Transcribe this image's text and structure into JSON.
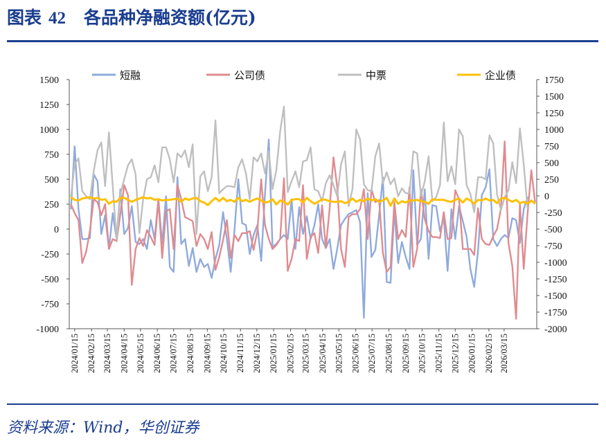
{
  "header": {
    "title_prefix": "图表",
    "title_number": "42",
    "title_text": "各品种净融资额(亿元)"
  },
  "footer": {
    "source": "资料来源：Wind，华创证券"
  },
  "chart_data": {
    "type": "line",
    "title": "各品种净融资额(亿元)",
    "xlabel": "",
    "ylabel": "",
    "ylim_left": [
      -1000,
      1500
    ],
    "ylim_right": [
      -2000,
      1750
    ],
    "yticks_left": [
      "1500",
      "1250",
      "1000",
      "750",
      "500",
      "250",
      "0",
      "-250",
      "-500",
      "-750",
      "-1000"
    ],
    "yticks_right": [
      "1750",
      "1500",
      "1250",
      "1000",
      "750",
      "500",
      "250",
      "0",
      "-250",
      "-500",
      "-750",
      "-1000",
      "-1250",
      "-1500",
      "-1750",
      "-2000"
    ],
    "x_tick_labels": [
      "2024/01/15",
      "2024/02/15",
      "2024/03/15",
      "2024/04/15",
      "2024/05/15",
      "2024/06/15",
      "2024/07/15",
      "2024/08/15",
      "2024/09/15",
      "2024/10/15",
      "2024/11/15",
      "2024/12/15",
      "2025/01/15",
      "2025/02/15",
      "2025/03/15",
      "2025/04/15",
      "2025/05/15",
      "2025/06/15",
      "2025/07/15",
      "2025/08/15",
      "2025/09/15",
      "2025/10/15",
      "2025/11/15",
      "2025/12/15",
      "2026/01/15",
      "2026/02/15",
      "2026/03/15"
    ],
    "x_start": "2024/01/08",
    "x_step_days": 7,
    "grid": false,
    "legend_position": "top",
    "series": [
      {
        "name": "短融",
        "axis": "left",
        "color": "#8faadc",
        "values": [
          200,
          830,
          200,
          -100,
          -100,
          -90,
          550,
          480,
          -50,
          140,
          -200,
          160,
          -100,
          400,
          -50,
          10,
          230,
          -130,
          -150,
          -100,
          -200,
          90,
          -100,
          300,
          -150,
          330,
          -380,
          -430,
          520,
          -150,
          -100,
          -370,
          -190,
          -430,
          -300,
          -380,
          -350,
          -490,
          -300,
          -160,
          170,
          -100,
          -430,
          -10,
          500,
          60,
          40,
          -250,
          -60,
          40,
          -320,
          350,
          900,
          -180,
          -150,
          -100,
          -60,
          -100,
          300,
          -200,
          220,
          -50,
          130,
          -100,
          40,
          250,
          -100,
          -190,
          -100,
          -400,
          -200,
          40,
          100,
          150,
          170,
          190,
          70,
          -890,
          360,
          -280,
          -210,
          140,
          520,
          -530,
          -540,
          190,
          -340,
          -130,
          -280,
          -400,
          590,
          -160,
          -100,
          400,
          -300,
          240,
          230,
          -20,
          110,
          -420,
          200,
          -100,
          230,
          80,
          -80,
          -400,
          -580,
          -220,
          340,
          420,
          600,
          -100,
          -170,
          -100,
          -60,
          -90,
          110,
          90,
          -140,
          200,
          320
        ]
      },
      {
        "name": "公司债",
        "axis": "left",
        "color": "#e08b8f",
        "values": [
          250,
          160,
          90,
          -340,
          -230,
          -20,
          300,
          270,
          140,
          250,
          -200,
          -100,
          -120,
          150,
          440,
          340,
          -560,
          -200,
          -90,
          -170,
          -10,
          -80,
          -160,
          290,
          -290,
          180,
          200,
          -200,
          440,
          300,
          120,
          100,
          80,
          -170,
          -50,
          -100,
          -200,
          -30,
          -410,
          -280,
          -110,
          90,
          -290,
          -60,
          -120,
          -40,
          -40,
          -20,
          -210,
          -20,
          500,
          40,
          -100,
          -200,
          -160,
          -100,
          510,
          -420,
          -300,
          -100,
          -120,
          440,
          -300,
          -80,
          -40,
          -240,
          240,
          -190,
          210,
          720,
          420,
          -200,
          -380,
          120,
          150,
          150,
          200,
          400,
          -100,
          400,
          270,
          290,
          -240,
          -430,
          -380,
          270,
          -100,
          -10,
          -80,
          420,
          -380,
          -200,
          400,
          100,
          -20,
          -80,
          -80,
          -90,
          170,
          -100,
          -90,
          390,
          300,
          -200,
          -200,
          -200,
          -260,
          210,
          -100,
          -150,
          -160,
          -70,
          0,
          200,
          880,
          -140,
          -370,
          -900,
          250,
          -400,
          150,
          590,
          270
        ]
      },
      {
        "name": "中票",
        "axis": "left",
        "color": "#bfbfbf",
        "values": [
          320,
          650,
          710,
          380,
          330,
          300,
          580,
          790,
          870,
          430,
          970,
          430,
          -100,
          350,
          500,
          640,
          700,
          550,
          -40,
          300,
          500,
          520,
          640,
          470,
          820,
          820,
          700,
          470,
          760,
          720,
          790,
          620,
          850,
          -50,
          530,
          580,
          380,
          520,
          1090,
          360,
          400,
          430,
          430,
          420,
          620,
          700,
          560,
          300,
          720,
          680,
          760,
          560,
          780,
          400,
          590,
          980,
          1230,
          370,
          480,
          580,
          420,
          680,
          690,
          820,
          400,
          380,
          280,
          460,
          540,
          440,
          330,
          650,
          780,
          230,
          400,
          1000,
          900,
          450,
          390,
          380,
          730,
          860,
          460,
          570,
          450,
          510,
          330,
          410,
          360,
          360,
          780,
          760,
          330,
          480,
          730,
          280,
          320,
          440,
          1070,
          480,
          630,
          450,
          1000,
          930,
          440,
          350,
          170,
          520,
          520,
          500,
          940,
          860,
          350,
          190,
          320,
          390,
          670,
          460,
          1010,
          650,
          210
        ]
      },
      {
        "name": "企业债",
        "axis": "right",
        "color": "#ffc000",
        "values": [
          -20,
          -60,
          -70,
          -40,
          -30,
          -20,
          -40,
          -30,
          -60,
          -50,
          -120,
          -80,
          -90,
          -30,
          -30,
          -60,
          -90,
          -60,
          -40,
          -20,
          -40,
          -30,
          -60,
          -50,
          -70,
          -60,
          -60,
          -50,
          -40,
          -90,
          -40,
          -60,
          -40,
          -30,
          -80,
          -100,
          -140,
          -80,
          -30,
          -80,
          -30,
          -80,
          -60,
          -90,
          -30,
          -80,
          -60,
          -90,
          -60,
          -40,
          -70,
          -100,
          -90,
          -50,
          -130,
          -70,
          -90,
          -130,
          -60,
          -50,
          -50,
          -100,
          -30,
          -80,
          -120,
          -90,
          -50,
          -60,
          -80,
          -90,
          -90,
          -80,
          -110,
          -90,
          -40,
          -90,
          -60,
          -80,
          -40,
          -70,
          -50,
          -90,
          -70,
          -30,
          -150,
          -40,
          -120,
          -80,
          -100,
          -70,
          -70,
          -60,
          -80,
          -90,
          -120,
          -50,
          -60,
          -60,
          -60,
          -80,
          -90,
          -60,
          -40,
          -100,
          -40,
          -70,
          -120,
          -60,
          -70,
          -40,
          -70,
          -60,
          -110,
          -40,
          -30,
          -60,
          -90,
          -60,
          -110,
          -90,
          -120,
          -70,
          -120
        ]
      }
    ]
  }
}
